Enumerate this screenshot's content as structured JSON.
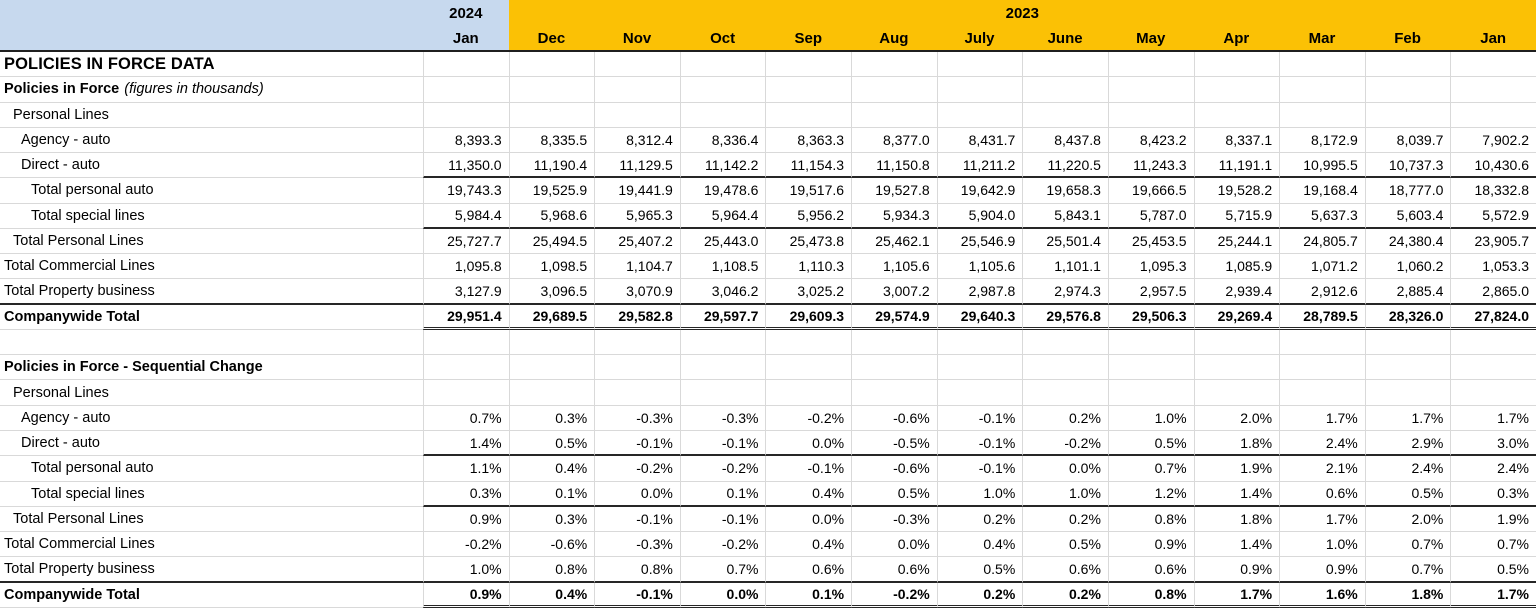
{
  "header": {
    "year_2024": "2024",
    "year_2023": "2023",
    "months": [
      "Jan",
      "Dec",
      "Nov",
      "Oct",
      "Sep",
      "Aug",
      "July",
      "June",
      "May",
      "Apr",
      "Mar",
      "Feb",
      "Jan"
    ]
  },
  "colors": {
    "year_2024_bg": "#c7d9ee",
    "year_2023_bg": "#fbc105",
    "dark_border": "#262626",
    "gridline": "#d9d9d9"
  },
  "rows": [
    {
      "label": "POLICIES IN FORCE DATA",
      "indent": 0,
      "bold": true,
      "size": "lg",
      "values": []
    },
    {
      "label": "Policies in Force",
      "label_italic": "(figures in thousands)",
      "indent": 0,
      "bold": true,
      "values": []
    },
    {
      "label": "Personal Lines",
      "indent": 1,
      "values": []
    },
    {
      "label": "Agency - auto",
      "indent": 2,
      "values": [
        "8,393.3",
        "8,335.5",
        "8,312.4",
        "8,336.4",
        "8,363.3",
        "8,377.0",
        "8,431.7",
        "8,437.8",
        "8,423.2",
        "8,337.1",
        "8,172.9",
        "8,039.7",
        "7,902.2"
      ]
    },
    {
      "label": "Direct - auto",
      "indent": 2,
      "border": "dark-data",
      "values": [
        "11,350.0",
        "11,190.4",
        "11,129.5",
        "11,142.2",
        "11,154.3",
        "11,150.8",
        "11,211.2",
        "11,220.5",
        "11,243.3",
        "11,191.1",
        "10,995.5",
        "10,737.3",
        "10,430.6"
      ]
    },
    {
      "label": "Total personal auto",
      "indent": 3,
      "values": [
        "19,743.3",
        "19,525.9",
        "19,441.9",
        "19,478.6",
        "19,517.6",
        "19,527.8",
        "19,642.9",
        "19,658.3",
        "19,666.5",
        "19,528.2",
        "19,168.4",
        "18,777.0",
        "18,332.8"
      ]
    },
    {
      "label": "Total special lines",
      "indent": 3,
      "border": "dark-data",
      "values": [
        "5,984.4",
        "5,968.6",
        "5,965.3",
        "5,964.4",
        "5,956.2",
        "5,934.3",
        "5,904.0",
        "5,843.1",
        "5,787.0",
        "5,715.9",
        "5,637.3",
        "5,603.4",
        "5,572.9"
      ]
    },
    {
      "label": "Total Personal Lines",
      "indent": 1,
      "values": [
        "25,727.7",
        "25,494.5",
        "25,407.2",
        "25,443.0",
        "25,473.8",
        "25,462.1",
        "25,546.9",
        "25,501.4",
        "25,453.5",
        "25,244.1",
        "24,805.7",
        "24,380.4",
        "23,905.7"
      ]
    },
    {
      "label": "Total Commercial Lines",
      "indent": 0,
      "values": [
        "1,095.8",
        "1,098.5",
        "1,104.7",
        "1,108.5",
        "1,110.3",
        "1,105.6",
        "1,105.6",
        "1,101.1",
        "1,095.3",
        "1,085.9",
        "1,071.2",
        "1,060.2",
        "1,053.3"
      ]
    },
    {
      "label": "Total Property business",
      "indent": 0,
      "border": "dark-full",
      "values": [
        "3,127.9",
        "3,096.5",
        "3,070.9",
        "3,046.2",
        "3,025.2",
        "3,007.2",
        "2,987.8",
        "2,974.3",
        "2,957.5",
        "2,939.4",
        "2,912.6",
        "2,885.4",
        "2,865.0"
      ]
    },
    {
      "label": "Companywide Total",
      "indent": 0,
      "bold": true,
      "border": "double-data",
      "values": [
        "29,951.4",
        "29,689.5",
        "29,582.8",
        "29,597.7",
        "29,609.3",
        "29,574.9",
        "29,640.3",
        "29,576.8",
        "29,506.3",
        "29,269.4",
        "28,789.5",
        "28,326.0",
        "27,824.0"
      ]
    },
    {
      "label": "",
      "indent": 0,
      "values": []
    },
    {
      "label": "Policies in Force - Sequential Change",
      "indent": 0,
      "bold": true,
      "values": []
    },
    {
      "label": "Personal Lines",
      "indent": 1,
      "values": []
    },
    {
      "label": "Agency - auto",
      "indent": 2,
      "values": [
        "0.7%",
        "0.3%",
        "-0.3%",
        "-0.3%",
        "-0.2%",
        "-0.6%",
        "-0.1%",
        "0.2%",
        "1.0%",
        "2.0%",
        "1.7%",
        "1.7%",
        "1.7%"
      ]
    },
    {
      "label": "Direct - auto",
      "indent": 2,
      "border": "dark-data",
      "values": [
        "1.4%",
        "0.5%",
        "-0.1%",
        "-0.1%",
        "0.0%",
        "-0.5%",
        "-0.1%",
        "-0.2%",
        "0.5%",
        "1.8%",
        "2.4%",
        "2.9%",
        "3.0%"
      ]
    },
    {
      "label": "Total personal auto",
      "indent": 3,
      "values": [
        "1.1%",
        "0.4%",
        "-0.2%",
        "-0.2%",
        "-0.1%",
        "-0.6%",
        "-0.1%",
        "0.0%",
        "0.7%",
        "1.9%",
        "2.1%",
        "2.4%",
        "2.4%"
      ]
    },
    {
      "label": "Total special lines",
      "indent": 3,
      "border": "dark-data",
      "values": [
        "0.3%",
        "0.1%",
        "0.0%",
        "0.1%",
        "0.4%",
        "0.5%",
        "1.0%",
        "1.0%",
        "1.2%",
        "1.4%",
        "0.6%",
        "0.5%",
        "0.3%"
      ]
    },
    {
      "label": "Total Personal Lines",
      "indent": 1,
      "values": [
        "0.9%",
        "0.3%",
        "-0.1%",
        "-0.1%",
        "0.0%",
        "-0.3%",
        "0.2%",
        "0.2%",
        "0.8%",
        "1.8%",
        "1.7%",
        "2.0%",
        "1.9%"
      ]
    },
    {
      "label": "Total Commercial Lines",
      "indent": 0,
      "values": [
        "-0.2%",
        "-0.6%",
        "-0.3%",
        "-0.2%",
        "0.4%",
        "0.0%",
        "0.4%",
        "0.5%",
        "0.9%",
        "1.4%",
        "1.0%",
        "0.7%",
        "0.7%"
      ]
    },
    {
      "label": "Total Property business",
      "indent": 0,
      "border": "dark-full",
      "values": [
        "1.0%",
        "0.8%",
        "0.8%",
        "0.7%",
        "0.6%",
        "0.6%",
        "0.5%",
        "0.6%",
        "0.6%",
        "0.9%",
        "0.9%",
        "0.7%",
        "0.5%"
      ]
    },
    {
      "label": "Companywide Total",
      "indent": 0,
      "bold": true,
      "border": "double-data",
      "values": [
        "0.9%",
        "0.4%",
        "-0.1%",
        "0.0%",
        "0.1%",
        "-0.2%",
        "0.2%",
        "0.2%",
        "0.8%",
        "1.7%",
        "1.6%",
        "1.8%",
        "1.7%"
      ]
    }
  ]
}
